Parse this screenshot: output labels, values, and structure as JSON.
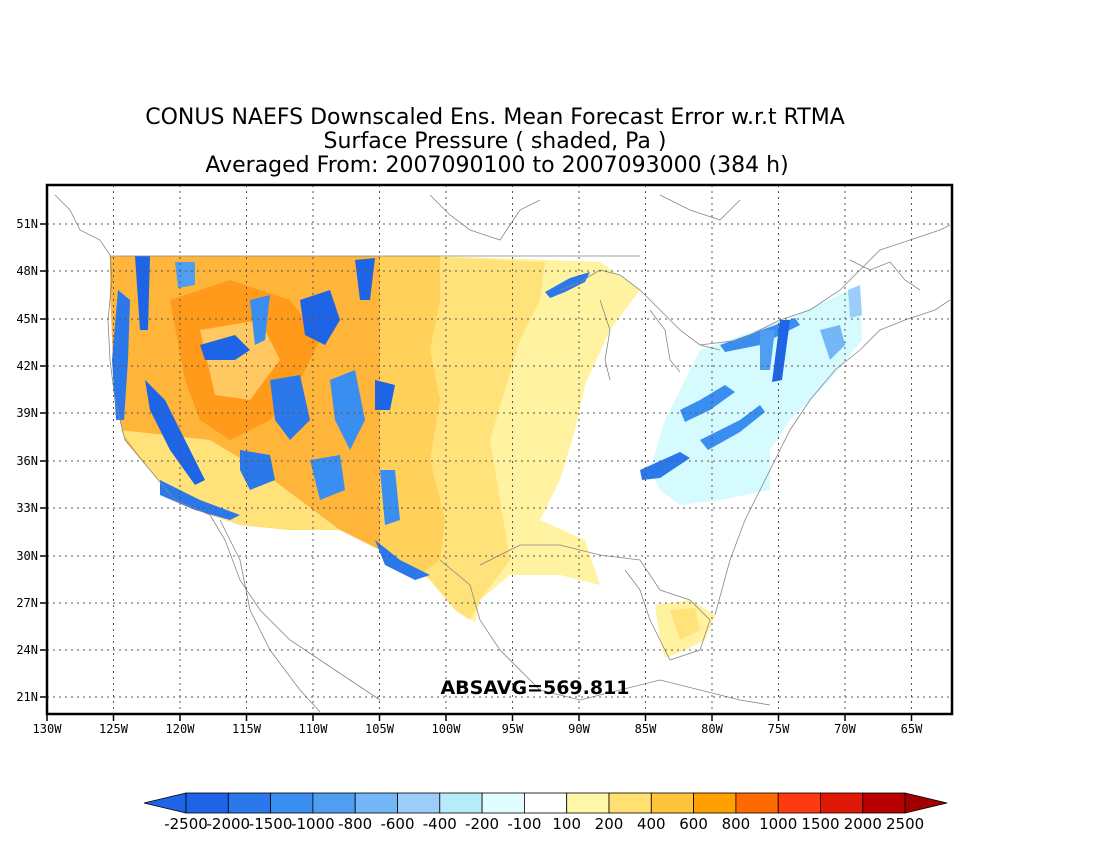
{
  "title": {
    "line1": "CONUS NAEFS Downscaled Ens. Mean Forecast Error w.r.t RTMA",
    "line2": "Surface Pressure ( shaded, Pa )",
    "line3": "Averaged From: 2007090100 to 2007093000 (384 h)"
  },
  "annotation": "ABSAVG=569.811",
  "axes": {
    "lon_labels": [
      "130W",
      "125W",
      "120W",
      "115W",
      "110W",
      "105W",
      "100W",
      "95W",
      "90W",
      "85W",
      "80W",
      "75W",
      "70W",
      "65W"
    ],
    "lat_labels": [
      "21N",
      "24N",
      "27N",
      "30N",
      "33N",
      "36N",
      "39N",
      "42N",
      "45N",
      "48N",
      "51N"
    ],
    "lon_range": [
      -130,
      -62
    ],
    "lat_range": [
      20,
      53
    ],
    "grid": "dotted"
  },
  "colorbar": {
    "labels": [
      "-2500",
      "-2000",
      "-1500",
      "-1000",
      "-800",
      "-600",
      "-400",
      "-200",
      "-100",
      "100",
      "200",
      "400",
      "600",
      "800",
      "1000",
      "1500",
      "2000",
      "2500"
    ],
    "colors": [
      "#1e64e6",
      "#2a78ea",
      "#3a8ef0",
      "#509ef2",
      "#74b6f6",
      "#9ccdfa",
      "#b6ecfa",
      "#e0fdff",
      "#ffffff",
      "#fff6a8",
      "#ffe070",
      "#ffc43a",
      "#ffa000",
      "#ff6a00",
      "#ff3a10",
      "#e01808",
      "#b80000"
    ],
    "under_color": "#1e64e6",
    "over_color": "#a00000"
  },
  "colors": {
    "frame": "#000000",
    "grid": "#555555",
    "coast": "#888888"
  }
}
